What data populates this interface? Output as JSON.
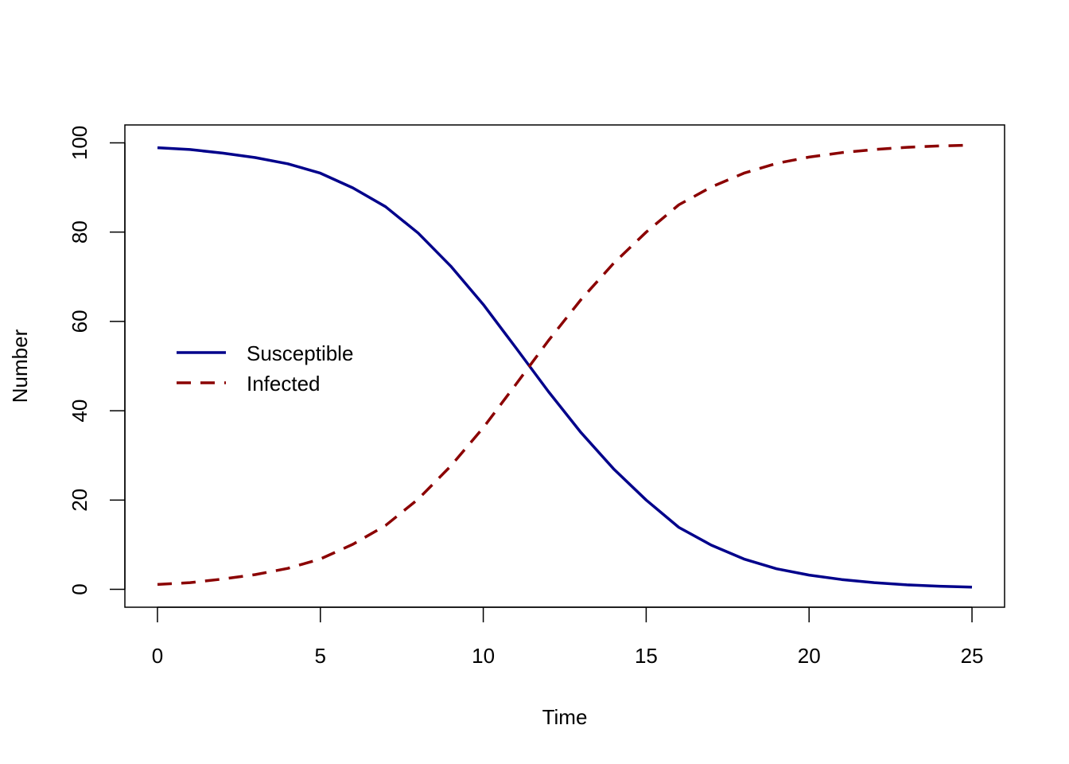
{
  "chart_data": {
    "type": "line",
    "title": "",
    "xlabel": "Time",
    "ylabel": "Number",
    "xlim": [
      -1,
      26
    ],
    "ylim": [
      -4,
      104
    ],
    "x_ticks": [
      0,
      5,
      10,
      15,
      20,
      25
    ],
    "y_ticks": [
      0,
      20,
      40,
      60,
      80,
      100
    ],
    "grid": false,
    "legend_position": "left",
    "x": [
      0,
      1,
      2,
      3,
      4,
      5,
      6,
      7,
      8,
      9,
      10,
      11,
      12,
      13,
      14,
      15,
      16,
      17,
      18,
      19,
      20,
      21,
      22,
      23,
      24,
      25
    ],
    "series": [
      {
        "name": "Susceptible",
        "color": "#00008B",
        "dash": "solid",
        "values": [
          98.9,
          98.5,
          97.7,
          96.7,
          95.3,
          93.2,
          89.9,
          85.7,
          79.8,
          72.4,
          63.8,
          54.1,
          44.3,
          35.1,
          27.0,
          20.0,
          13.9,
          9.9,
          6.8,
          4.6,
          3.2,
          2.2,
          1.5,
          1.0,
          0.7,
          0.5
        ]
      },
      {
        "name": "Infected",
        "color": "#8B0000",
        "dash": "dashed",
        "values": [
          1.1,
          1.5,
          2.3,
          3.3,
          4.7,
          6.8,
          10.1,
          14.3,
          20.2,
          27.6,
          36.2,
          45.9,
          55.7,
          64.9,
          73.0,
          80.0,
          86.1,
          90.1,
          93.2,
          95.4,
          96.8,
          97.8,
          98.5,
          99.0,
          99.3,
          99.5
        ]
      }
    ]
  }
}
